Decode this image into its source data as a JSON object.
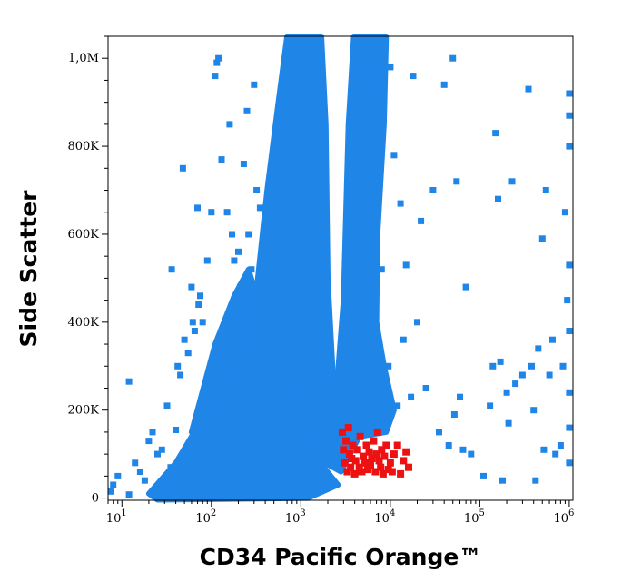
{
  "chart_data": {
    "type": "scatter",
    "xlabel": "CD34 Pacific Orange™",
    "ylabel": "Side Scatter",
    "x_scale": "log",
    "xlim": [
      7,
      1100000
    ],
    "ylim": [
      -5000,
      1050000
    ],
    "x_ticks": [
      {
        "value": 10,
        "base": "10",
        "exp": "1"
      },
      {
        "value": 100,
        "base": "10",
        "exp": "2"
      },
      {
        "value": 1000,
        "base": "10",
        "exp": "3"
      },
      {
        "value": 10000,
        "base": "10",
        "exp": "4"
      },
      {
        "value": 100000,
        "base": "10",
        "exp": "5"
      },
      {
        "value": 1000000,
        "base": "10",
        "exp": "6"
      }
    ],
    "y_ticks": [
      {
        "value": 0,
        "label": "0"
      },
      {
        "value": 200000,
        "label": "200K"
      },
      {
        "value": 400000,
        "label": "400K"
      },
      {
        "value": 600000,
        "label": "600K"
      },
      {
        "value": 800000,
        "label": "800K"
      },
      {
        "value": 1000000,
        "label": "1,0M"
      }
    ],
    "grid": false,
    "colors": {
      "main_population": "#1f86e8",
      "cd34_positive_gate": "#ee1111"
    },
    "series": [
      {
        "color": "#1f86e8",
        "points": [
          [
            7.5,
            15000
          ],
          [
            8,
            30000
          ],
          [
            9,
            50000
          ],
          [
            12,
            8000
          ],
          [
            12,
            265000
          ],
          [
            14,
            80000
          ],
          [
            16,
            60000
          ],
          [
            18,
            40000
          ],
          [
            20,
            130000
          ],
          [
            22,
            150000
          ],
          [
            25,
            100000
          ],
          [
            26,
            20000
          ],
          [
            28,
            110000
          ],
          [
            30,
            45000
          ],
          [
            32,
            210000
          ],
          [
            35,
            70000
          ],
          [
            36,
            520000
          ],
          [
            40,
            155000
          ],
          [
            42,
            300000
          ],
          [
            45,
            280000
          ],
          [
            48,
            750000
          ],
          [
            50,
            360000
          ],
          [
            55,
            330000
          ],
          [
            60,
            480000
          ],
          [
            62,
            400000
          ],
          [
            65,
            380000
          ],
          [
            70,
            660000
          ],
          [
            72,
            440000
          ],
          [
            75,
            460000
          ],
          [
            80,
            400000
          ],
          [
            90,
            540000
          ],
          [
            100,
            650000
          ],
          [
            110,
            960000
          ],
          [
            115,
            990000
          ],
          [
            120,
            1000000
          ],
          [
            130,
            770000
          ],
          [
            150,
            650000
          ],
          [
            160,
            850000
          ],
          [
            170,
            600000
          ],
          [
            180,
            540000
          ],
          [
            200,
            560000
          ],
          [
            210,
            480000
          ],
          [
            220,
            420000
          ],
          [
            230,
            760000
          ],
          [
            250,
            880000
          ],
          [
            260,
            600000
          ],
          [
            280,
            520000
          ],
          [
            300,
            940000
          ],
          [
            320,
            700000
          ],
          [
            350,
            660000
          ],
          [
            4200,
            1040000
          ],
          [
            5000,
            850000
          ],
          [
            5500,
            700000
          ],
          [
            6500,
            940000
          ],
          [
            7000,
            640000
          ],
          [
            8000,
            520000
          ],
          [
            9500,
            300000
          ],
          [
            10000,
            980000
          ],
          [
            11000,
            780000
          ],
          [
            12000,
            210000
          ],
          [
            13000,
            670000
          ],
          [
            14000,
            360000
          ],
          [
            15000,
            530000
          ],
          [
            17000,
            230000
          ],
          [
            18000,
            960000
          ],
          [
            20000,
            400000
          ],
          [
            22000,
            630000
          ],
          [
            25000,
            250000
          ],
          [
            30000,
            700000
          ],
          [
            35000,
            150000
          ],
          [
            40000,
            940000
          ],
          [
            45000,
            120000
          ],
          [
            50000,
            1000000
          ],
          [
            52000,
            190000
          ],
          [
            55000,
            720000
          ],
          [
            60000,
            230000
          ],
          [
            65000,
            110000
          ],
          [
            70000,
            480000
          ],
          [
            80000,
            100000
          ],
          [
            110000,
            50000
          ],
          [
            130000,
            210000
          ],
          [
            140000,
            300000
          ],
          [
            150000,
            830000
          ],
          [
            160000,
            680000
          ],
          [
            170000,
            310000
          ],
          [
            180000,
            40000
          ],
          [
            200000,
            240000
          ],
          [
            210000,
            170000
          ],
          [
            230000,
            720000
          ],
          [
            250000,
            260000
          ],
          [
            300000,
            280000
          ],
          [
            350000,
            930000
          ],
          [
            380000,
            300000
          ],
          [
            400000,
            200000
          ],
          [
            420000,
            40000
          ],
          [
            450000,
            340000
          ],
          [
            500000,
            590000
          ],
          [
            520000,
            110000
          ],
          [
            550000,
            700000
          ],
          [
            600000,
            280000
          ],
          [
            650000,
            360000
          ],
          [
            700000,
            100000
          ],
          [
            800000,
            120000
          ],
          [
            850000,
            300000
          ],
          [
            900000,
            650000
          ],
          [
            950000,
            450000
          ],
          [
            1000000,
            920000
          ],
          [
            1000000,
            870000
          ],
          [
            1000000,
            800000
          ],
          [
            1000000,
            530000
          ],
          [
            1000000,
            380000
          ],
          [
            1000000,
            240000
          ],
          [
            1000000,
            160000
          ],
          [
            1000000,
            80000
          ]
        ]
      },
      {
        "color": "#ee1111",
        "points": [
          [
            2900,
            150000
          ],
          [
            3000,
            110000
          ],
          [
            3100,
            80000
          ],
          [
            3200,
            130000
          ],
          [
            3300,
            60000
          ],
          [
            3400,
            160000
          ],
          [
            3500,
            100000
          ],
          [
            3600,
            70000
          ],
          [
            3700,
            90000
          ],
          [
            3800,
            120000
          ],
          [
            4000,
            55000
          ],
          [
            4100,
            85000
          ],
          [
            4300,
            110000
          ],
          [
            4500,
            70000
          ],
          [
            4600,
            140000
          ],
          [
            4800,
            60000
          ],
          [
            5000,
            95000
          ],
          [
            5200,
            80000
          ],
          [
            5400,
            120000
          ],
          [
            5600,
            65000
          ],
          [
            5800,
            105000
          ],
          [
            6000,
            75000
          ],
          [
            6200,
            90000
          ],
          [
            6500,
            130000
          ],
          [
            6800,
            60000
          ],
          [
            7000,
            100000
          ],
          [
            7200,
            150000
          ],
          [
            7500,
            85000
          ],
          [
            7800,
            70000
          ],
          [
            8000,
            110000
          ],
          [
            8300,
            55000
          ],
          [
            8600,
            95000
          ],
          [
            9000,
            120000
          ],
          [
            9500,
            65000
          ],
          [
            10000,
            80000
          ],
          [
            10500,
            60000
          ],
          [
            11000,
            100000
          ],
          [
            12000,
            120000
          ],
          [
            13000,
            55000
          ],
          [
            14000,
            85000
          ],
          [
            15000,
            105000
          ],
          [
            16000,
            70000
          ]
        ]
      }
    ]
  }
}
